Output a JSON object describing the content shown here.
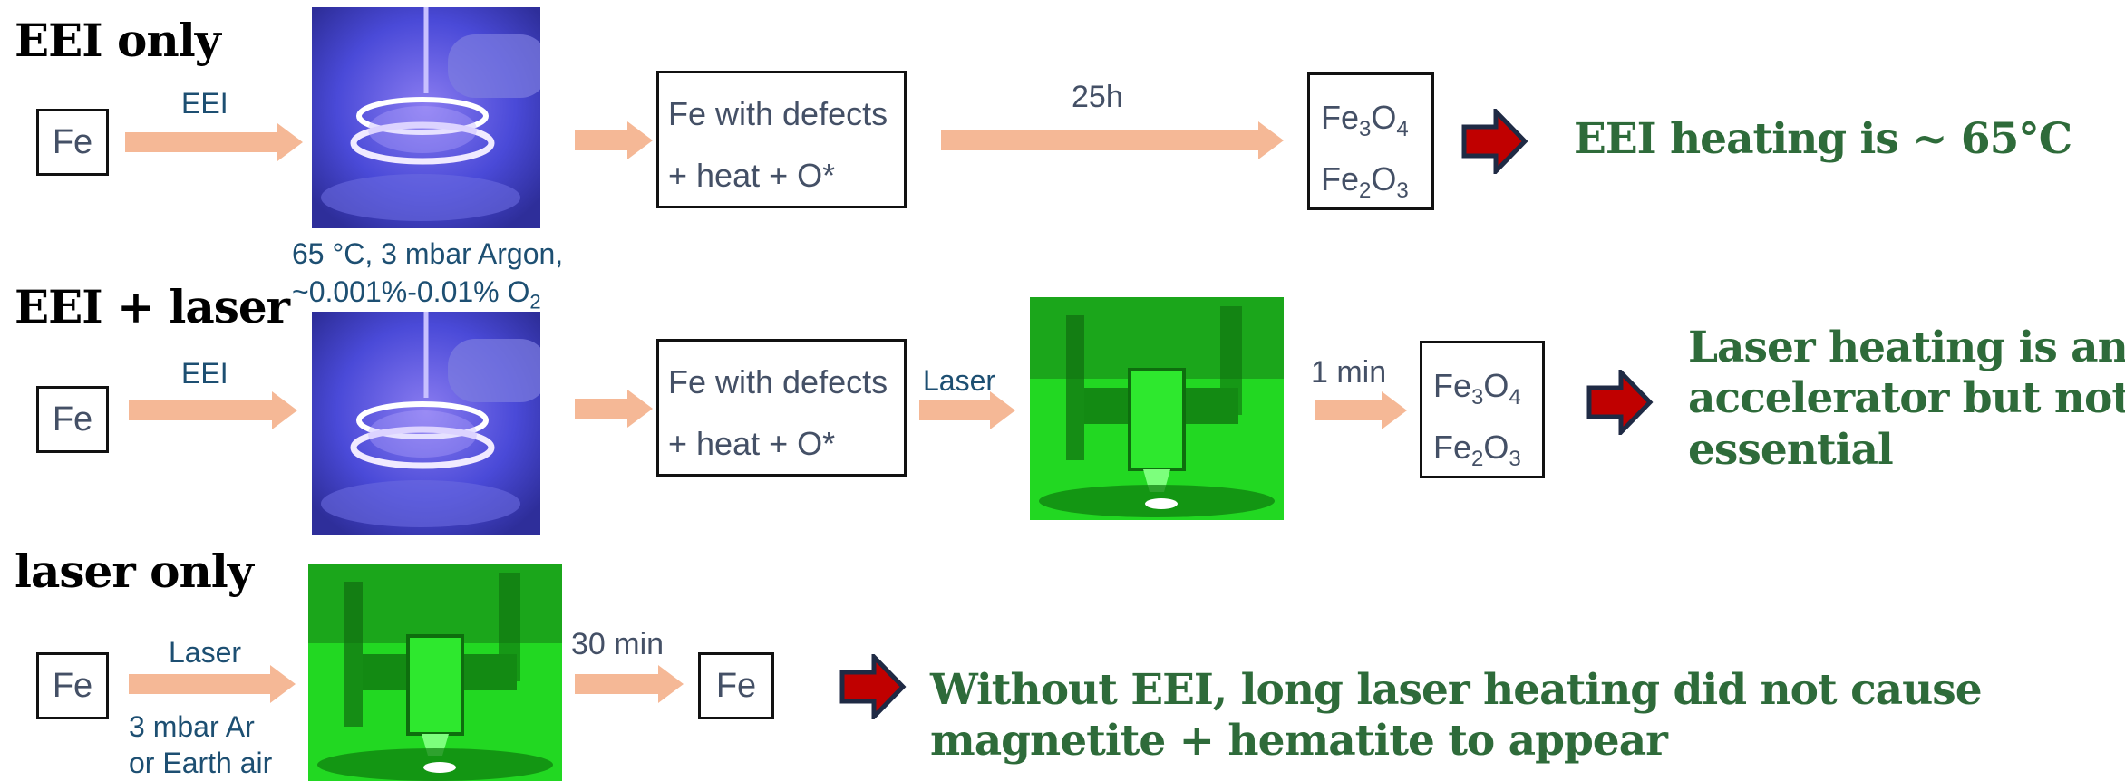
{
  "rows": {
    "eei_only": {
      "title": "EEI only",
      "start": "Fe",
      "arrow1_label": "EEI",
      "conditions_line1": "65 °C, 3 mbar Argon,",
      "conditions_line2": "~0.001%-0.01% O",
      "conditions_sub": "2",
      "intermediate_line1": "Fe with defects",
      "intermediate_line2": "+ heat + O*",
      "arrow3_label": "25h",
      "product1_main": "Fe",
      "product1_sub1": "3",
      "product1_mid": "O",
      "product1_sub2": "4",
      "product2_main": "Fe",
      "product2_sub1": "2",
      "product2_mid": "O",
      "product2_sub2": "3",
      "conclusion": "EEI heating is ~ 65°C"
    },
    "eei_laser": {
      "title": "EEI + laser",
      "start": "Fe",
      "arrow1_label": "EEI",
      "intermediate_line1": "Fe with defects",
      "intermediate_line2": "+ heat + O*",
      "arrow3_label": "Laser",
      "arrow4_label": "1 min",
      "product1_main": "Fe",
      "product1_sub1": "3",
      "product1_mid": "O",
      "product1_sub2": "4",
      "product2_main": "Fe",
      "product2_sub1": "2",
      "product2_mid": "O",
      "product2_sub2": "3",
      "conclusion_line1": "Laser heating is an",
      "conclusion_line2": "accelerator but not",
      "conclusion_line3": "essential"
    },
    "laser_only": {
      "title": "laser only",
      "start": "Fe",
      "arrow1_label": "Laser",
      "conditions_line1": "3 mbar Ar",
      "conditions_line2": "or Earth air",
      "arrow2_label": "30 min",
      "end": "Fe",
      "conclusion_line1": "Without EEI, long laser heating did not cause",
      "conclusion_line2": "magnetite + hematite to appear"
    }
  },
  "colors": {
    "process_arrow": "#f5b896",
    "conclusion_arrow_fill": "#c00000",
    "conclusion_arrow_stroke": "#1f2a44",
    "conclusion_text": "#2e6b3a",
    "label_text": "#1d4f72",
    "plasma_bg": "#4a4ad8",
    "laser_bg": "#22d822"
  }
}
